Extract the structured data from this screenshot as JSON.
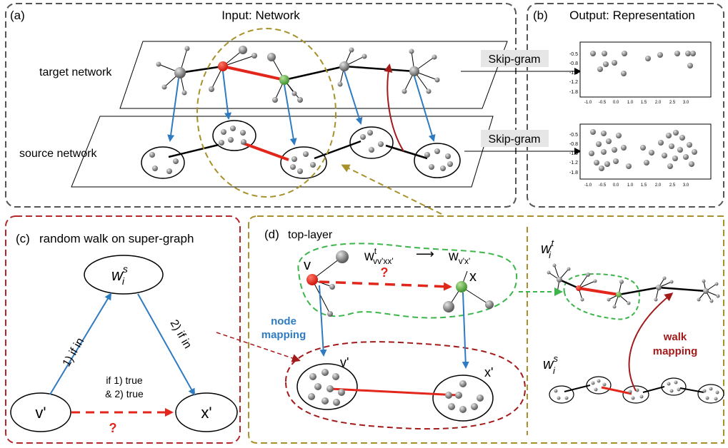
{
  "panel_a": {
    "label": "(a)",
    "title": "Input: Network",
    "target_label": "target network",
    "source_label": "source network"
  },
  "panel_b": {
    "label": "(b)",
    "title": "Output: Representation",
    "skipgram": "Skip-gram",
    "y_ticks": [
      "-0.5",
      "-0.8",
      "-1.0",
      "-1.2",
      "-1.8"
    ],
    "x_ticks": [
      "-1.0",
      "-0.5",
      "0.0",
      "1.0",
      "1.5",
      "2.0",
      "2.5",
      "3.0"
    ]
  },
  "panel_c": {
    "label": "(c)",
    "title": "random walk on super-graph",
    "w_node": "w",
    "w_sup": "s",
    "w_sub": "i",
    "v_node": "v'",
    "x_node": "x'",
    "left_edge": "1) if in",
    "right_edge": "2) if in",
    "cond_line1": "if 1) true",
    "cond_line2": "& 2) true",
    "question": "?"
  },
  "panel_d": {
    "label": "(d)",
    "title": "top-layer",
    "v_label": "v",
    "x_label": "x",
    "v_prime": "v'",
    "x_prime": "x'",
    "w_base": "w",
    "w_t_sup": "t",
    "w_sub_left": "vv'xx'",
    "w_sub_right": "v'x'",
    "arrow": "⟶",
    "question": "?",
    "node_mapping_1": "node",
    "node_mapping_2": "mapping",
    "walk_mapping_1": "walk",
    "walk_mapping_2": "mapping",
    "wt_base": "w",
    "wt_sup": "t",
    "wt_sub": "i",
    "ws_base": "w",
    "ws_sup": "s",
    "ws_sub": "i"
  },
  "colors": {
    "red": "#e2261b",
    "blue": "#2f7bc1",
    "dark_red": "#a31a1a",
    "olive": "#a8912a",
    "green": "#3cb54a",
    "gray_frame": "#555555"
  }
}
